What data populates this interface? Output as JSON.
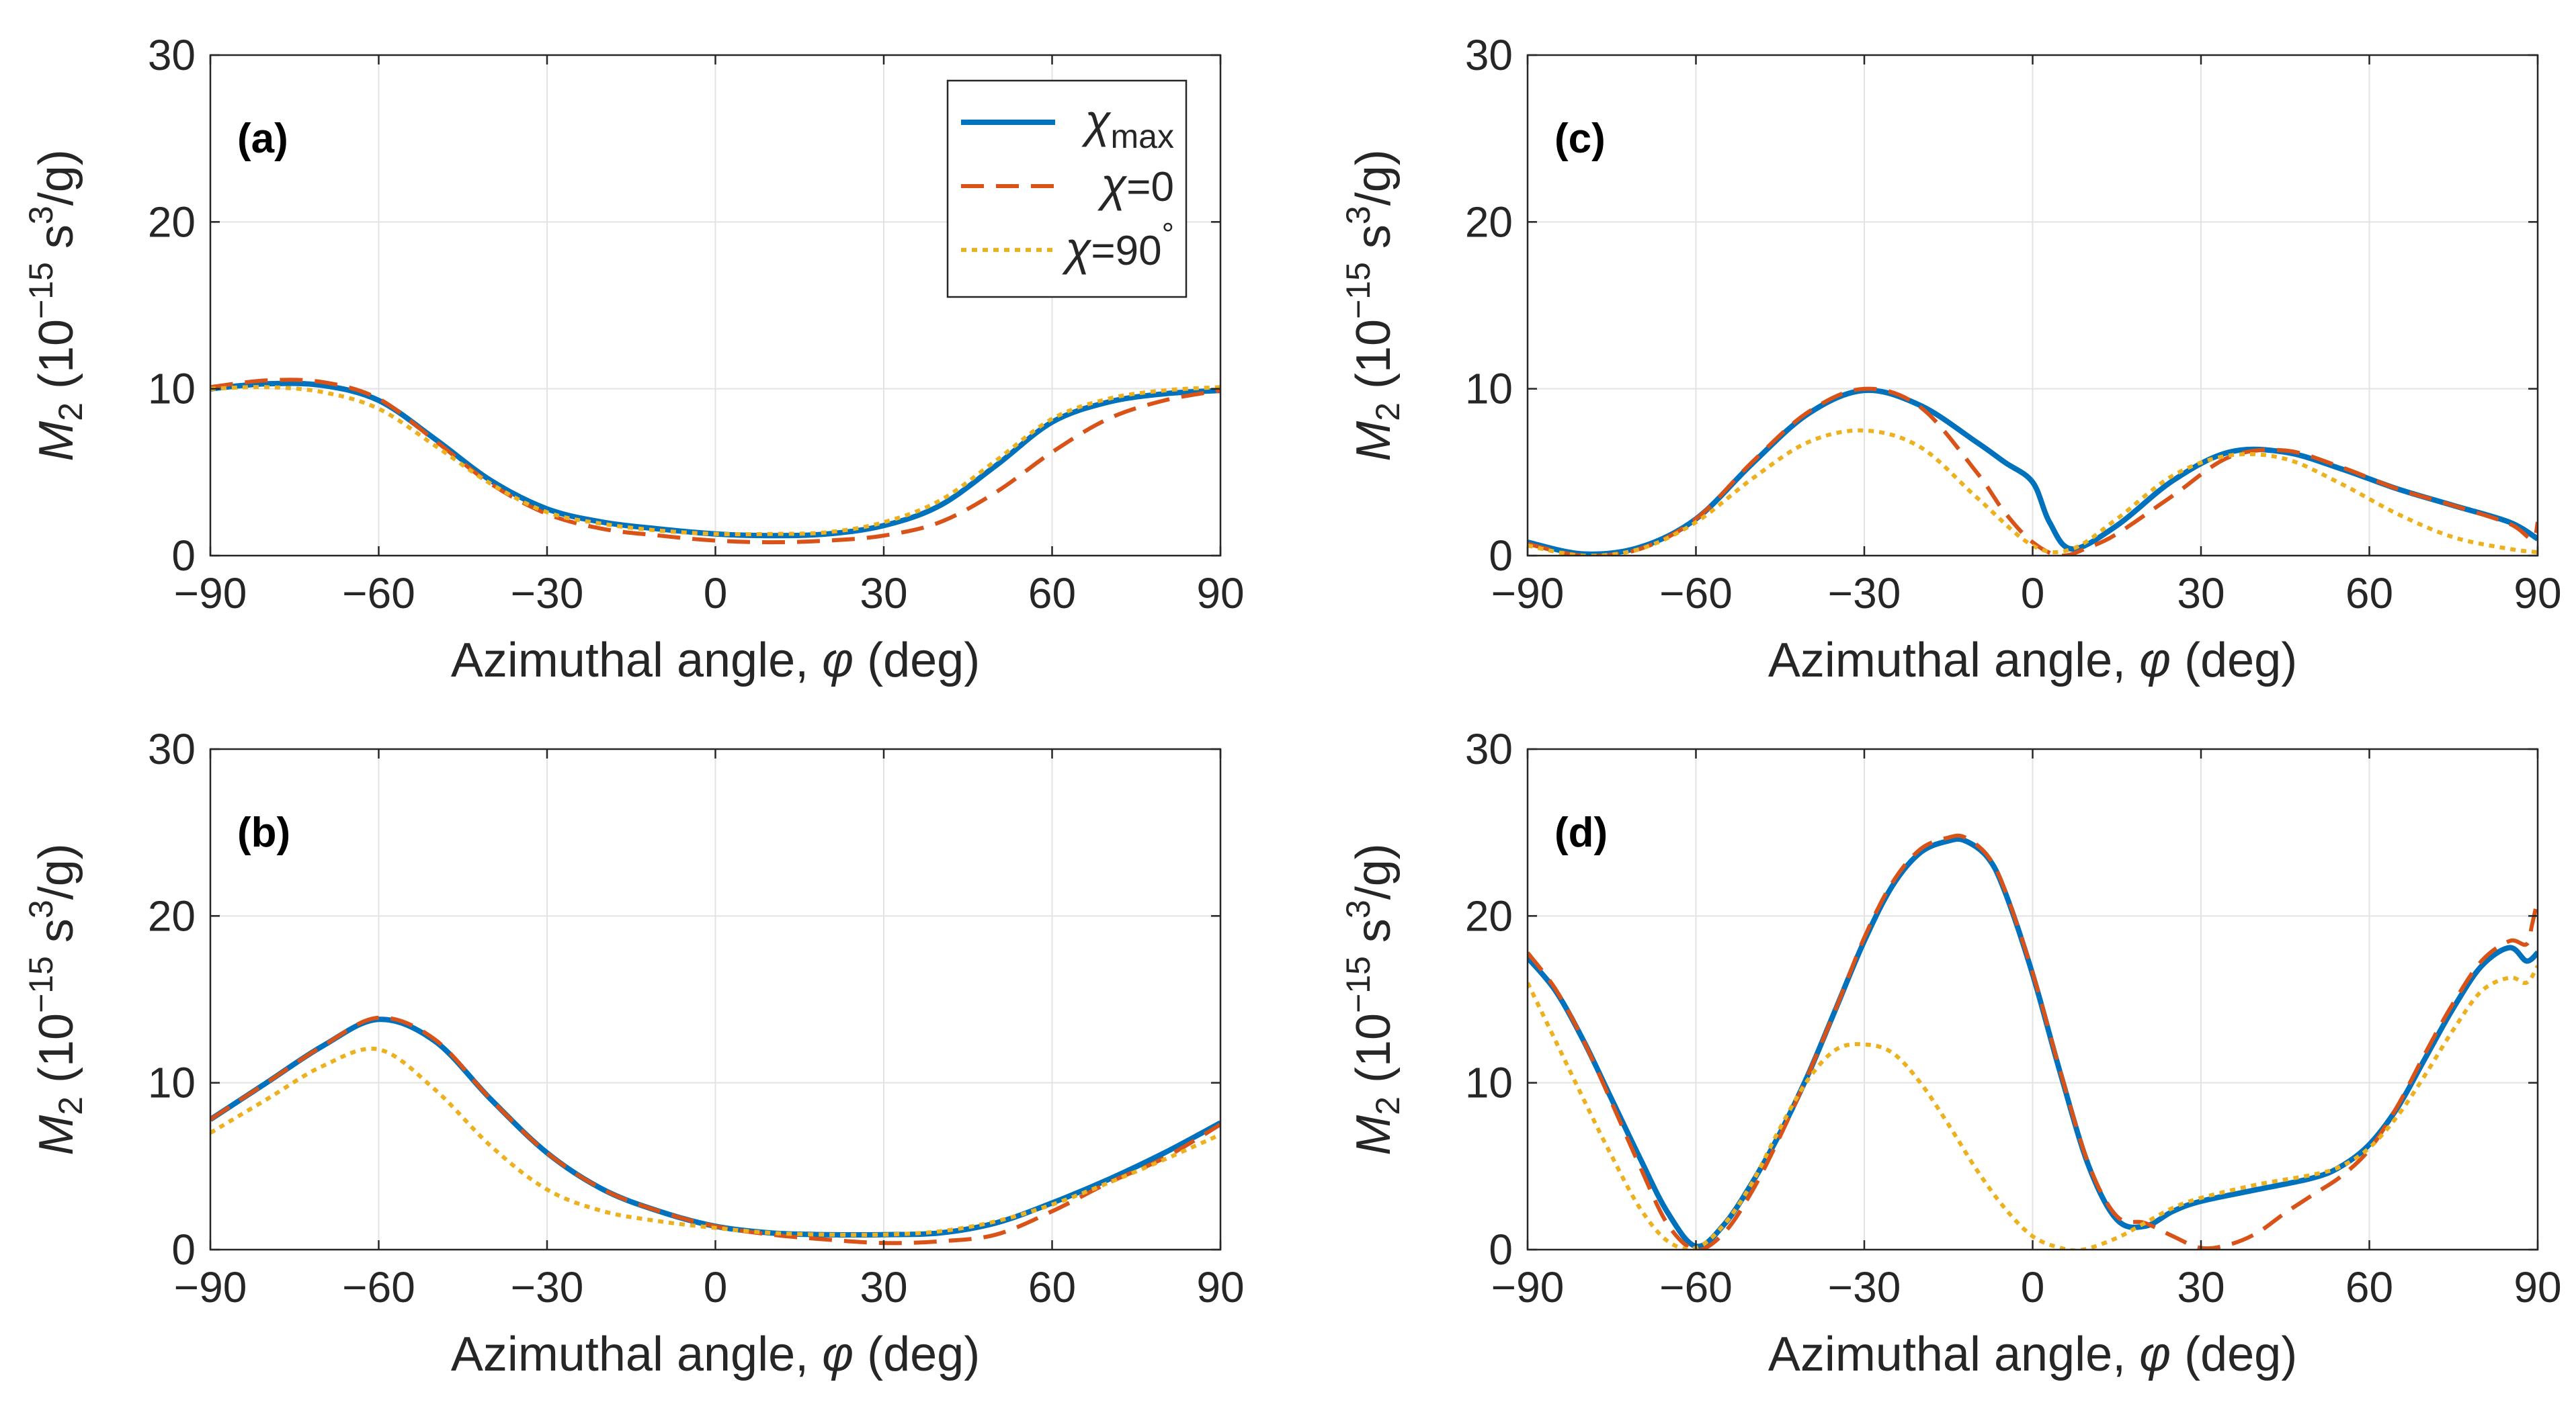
{
  "legend": [
    {
      "name": "χmax",
      "symbol": "χ",
      "sub": "max",
      "sup": "",
      "color": "#0072BD",
      "dash": "solid"
    },
    {
      "name": "χ=0",
      "symbol": "χ",
      "sub": "",
      "suffix": "=0",
      "sup": "",
      "color": "#D95319",
      "dash": "dashed"
    },
    {
      "name": "χ=90°",
      "symbol": "χ",
      "sub": "",
      "suffix": "=90",
      "sup": "°",
      "color": "#EDB120",
      "dash": "dotted"
    }
  ],
  "axis_text": {
    "xlabel_main": "Azimuthal angle, ",
    "xlabel_sym": "φ",
    "xlabel_unit": " (deg)",
    "ylabel_sym": "M",
    "ylabel_sub": "2",
    "ylabel_pre": " (10",
    "ylabel_exp": "−15",
    "ylabel_mid": " s",
    "ylabel_exp2": "3",
    "ylabel_post": "/g)"
  },
  "chart_data": [
    {
      "type": "line",
      "panel": "(a)",
      "xlabel": "Azimuthal angle, φ (deg)",
      "ylabel": "M2 (10^-15 s^3/g)",
      "xlim": [
        -90,
        90
      ],
      "ylim": [
        0,
        30
      ],
      "xticks": [
        -90,
        -60,
        -30,
        0,
        30,
        60,
        90
      ],
      "yticks": [
        0,
        10,
        20,
        30
      ],
      "grid": true,
      "legend_position": "top-right",
      "series": [
        {
          "name": "χmax",
          "x": [
            -90,
            -80,
            -70,
            -60,
            -50,
            -40,
            -30,
            -20,
            -10,
            0,
            10,
            20,
            30,
            40,
            50,
            60,
            70,
            80,
            90
          ],
          "y": [
            10.0,
            10.3,
            10.2,
            9.3,
            7.0,
            4.5,
            2.8,
            2.0,
            1.6,
            1.3,
            1.2,
            1.3,
            1.8,
            3.0,
            5.4,
            8.0,
            9.2,
            9.7,
            9.9
          ]
        },
        {
          "name": "χ=0",
          "x": [
            -90,
            -80,
            -70,
            -60,
            -50,
            -40,
            -30,
            -20,
            -10,
            0,
            10,
            20,
            30,
            40,
            50,
            60,
            70,
            80,
            90
          ],
          "y": [
            10.1,
            10.5,
            10.4,
            9.4,
            6.9,
            4.3,
            2.5,
            1.6,
            1.2,
            0.9,
            0.8,
            0.9,
            1.2,
            2.0,
            3.8,
            6.2,
            8.2,
            9.3,
            9.9
          ]
        },
        {
          "name": "χ=90°",
          "x": [
            -90,
            -80,
            -70,
            -60,
            -50,
            -40,
            -30,
            -20,
            -10,
            0,
            10,
            20,
            30,
            40,
            50,
            60,
            70,
            80,
            90
          ],
          "y": [
            10.0,
            10.1,
            9.8,
            8.8,
            6.6,
            4.3,
            2.6,
            1.9,
            1.5,
            1.3,
            1.3,
            1.4,
            2.0,
            3.3,
            5.7,
            8.2,
            9.4,
            9.9,
            10.1
          ]
        }
      ]
    },
    {
      "type": "line",
      "panel": "(b)",
      "xlabel": "Azimuthal angle, φ (deg)",
      "ylabel": "M2 (10^-15 s^3/g)",
      "xlim": [
        -90,
        90
      ],
      "ylim": [
        0,
        30
      ],
      "xticks": [
        -90,
        -60,
        -30,
        0,
        30,
        60,
        90
      ],
      "yticks": [
        0,
        10,
        20,
        30
      ],
      "grid": true,
      "series": [
        {
          "name": "χmax",
          "x": [
            -90,
            -80,
            -70,
            -60,
            -50,
            -40,
            -30,
            -20,
            -10,
            0,
            10,
            20,
            30,
            40,
            50,
            60,
            70,
            80,
            90
          ],
          "y": [
            7.8,
            10.0,
            12.2,
            13.8,
            12.5,
            9.0,
            5.8,
            3.6,
            2.3,
            1.4,
            1.0,
            0.9,
            0.9,
            1.0,
            1.6,
            2.8,
            4.2,
            5.8,
            7.6
          ]
        },
        {
          "name": "χ=0",
          "x": [
            -90,
            -80,
            -70,
            -60,
            -50,
            -40,
            -30,
            -20,
            -10,
            0,
            10,
            20,
            30,
            40,
            50,
            60,
            70,
            80,
            90
          ],
          "y": [
            7.8,
            10.0,
            12.2,
            13.9,
            12.6,
            9.0,
            5.8,
            3.6,
            2.3,
            1.4,
            0.9,
            0.6,
            0.4,
            0.5,
            0.9,
            2.3,
            4.0,
            5.5,
            7.5
          ]
        },
        {
          "name": "χ=90°",
          "x": [
            -90,
            -80,
            -70,
            -60,
            -50,
            -40,
            -30,
            -20,
            -10,
            0,
            10,
            20,
            30,
            40,
            50,
            60,
            70,
            80,
            90
          ],
          "y": [
            7.0,
            9.0,
            11.0,
            12.0,
            9.6,
            6.2,
            3.6,
            2.3,
            1.7,
            1.3,
            1.0,
            0.9,
            0.9,
            1.1,
            1.7,
            2.7,
            4.0,
            5.4,
            6.9
          ]
        }
      ]
    },
    {
      "type": "line",
      "panel": "(c)",
      "xlabel": "Azimuthal angle, φ (deg)",
      "ylabel": "M2 (10^-15 s^3/g)",
      "xlim": [
        -90,
        90
      ],
      "ylim": [
        0,
        30
      ],
      "xticks": [
        -90,
        -60,
        -30,
        0,
        30,
        60,
        90
      ],
      "yticks": [
        0,
        10,
        20,
        30
      ],
      "grid": true,
      "series": [
        {
          "name": "χmax",
          "x": [
            -90,
            -80,
            -70,
            -60,
            -50,
            -40,
            -30,
            -20,
            -10,
            -5,
            0,
            3,
            7,
            15,
            25,
            35,
            45,
            55,
            65,
            75,
            85,
            90
          ],
          "y": [
            0.8,
            0.1,
            0.5,
            2.2,
            5.5,
            8.5,
            9.9,
            9.0,
            6.8,
            5.6,
            4.4,
            2.0,
            0.4,
            1.8,
            4.5,
            6.2,
            6.2,
            5.2,
            4.0,
            3.0,
            2.0,
            1.0
          ]
        },
        {
          "name": "χ=0",
          "x": [
            -90,
            -80,
            -70,
            -60,
            -50,
            -40,
            -30,
            -20,
            -10,
            -5,
            0,
            5,
            10,
            15,
            25,
            35,
            45,
            55,
            65,
            75,
            85,
            89,
            90
          ],
          "y": [
            0.7,
            0.0,
            0.4,
            2.2,
            5.6,
            8.6,
            10.0,
            8.9,
            5.0,
            2.6,
            0.8,
            0.0,
            0.5,
            1.3,
            3.6,
            5.9,
            6.3,
            5.3,
            4.0,
            3.0,
            1.9,
            1.0,
            2.0
          ]
        },
        {
          "name": "χ=90°",
          "x": [
            -90,
            -80,
            -70,
            -60,
            -50,
            -40,
            -30,
            -20,
            -10,
            0,
            7,
            15,
            25,
            35,
            45,
            55,
            65,
            75,
            85,
            90
          ],
          "y": [
            0.6,
            0.0,
            0.4,
            2.0,
            4.6,
            6.8,
            7.5,
            6.5,
            3.5,
            0.6,
            0.4,
            2.2,
            4.8,
            6.0,
            5.8,
            4.3,
            2.5,
            1.1,
            0.4,
            0.2
          ]
        }
      ]
    },
    {
      "type": "line",
      "panel": "(d)",
      "xlabel": "Azimuthal angle, φ (deg)",
      "ylabel": "M2 (10^-15 s^3/g)",
      "xlim": [
        -90,
        90
      ],
      "ylim": [
        0,
        30
      ],
      "xticks": [
        -90,
        -60,
        -30,
        0,
        30,
        60,
        90
      ],
      "yticks": [
        0,
        10,
        20,
        30
      ],
      "grid": true,
      "series": [
        {
          "name": "χmax",
          "x": [
            -90,
            -85,
            -80,
            -75,
            -70,
            -65,
            -60,
            -55,
            -50,
            -45,
            -40,
            -35,
            -30,
            -25,
            -20,
            -15,
            -12,
            -8,
            -5,
            0,
            5,
            10,
            15,
            20,
            25,
            30,
            40,
            50,
            55,
            60,
            65,
            70,
            75,
            80,
            85,
            88,
            90
          ],
          "y": [
            17.5,
            15.5,
            12.5,
            9.0,
            5.5,
            2.2,
            0.2,
            1.5,
            4.0,
            7.0,
            10.5,
            14.5,
            18.5,
            21.8,
            23.8,
            24.5,
            24.5,
            23.5,
            21.5,
            16.5,
            10.5,
            5.0,
            1.8,
            1.4,
            2.3,
            2.9,
            3.6,
            4.3,
            5.0,
            6.3,
            8.5,
            11.5,
            14.5,
            17.0,
            18.1,
            17.3,
            17.8
          ]
        },
        {
          "name": "χ=0",
          "x": [
            -90,
            -85,
            -80,
            -75,
            -70,
            -65,
            -60,
            -55,
            -50,
            -45,
            -40,
            -35,
            -30,
            -25,
            -20,
            -15,
            -12,
            -8,
            -5,
            0,
            5,
            10,
            15,
            20,
            25,
            30,
            35,
            40,
            45,
            50,
            55,
            60,
            65,
            70,
            75,
            80,
            85,
            88,
            89,
            90
          ],
          "y": [
            17.8,
            15.6,
            12.5,
            8.8,
            5.0,
            1.5,
            0.0,
            1.0,
            3.5,
            6.8,
            10.5,
            14.5,
            18.7,
            22.0,
            24.0,
            24.7,
            24.7,
            23.6,
            21.6,
            16.6,
            10.6,
            5.1,
            2.0,
            1.6,
            0.8,
            0.1,
            0.3,
            1.0,
            2.2,
            3.3,
            4.4,
            6.0,
            8.6,
            11.8,
            14.8,
            17.3,
            18.5,
            18.3,
            19.5,
            21.0
          ]
        },
        {
          "name": "χ=90°",
          "x": [
            -90,
            -85,
            -80,
            -75,
            -70,
            -65,
            -60,
            -55,
            -50,
            -45,
            -40,
            -35,
            -30,
            -25,
            -20,
            -15,
            -10,
            -5,
            0,
            5,
            9,
            15,
            20,
            25,
            30,
            40,
            50,
            55,
            60,
            65,
            70,
            75,
            80,
            85,
            88,
            90
          ],
          "y": [
            16.0,
            12.5,
            9.0,
            5.6,
            2.5,
            0.5,
            0.1,
            1.5,
            4.0,
            7.3,
            10.2,
            12.0,
            12.3,
            11.8,
            10.0,
            7.5,
            4.8,
            2.5,
            0.8,
            0.1,
            0.0,
            0.7,
            1.6,
            2.5,
            3.1,
            3.9,
            4.5,
            5.0,
            6.1,
            8.0,
            10.5,
            13.2,
            15.5,
            16.3,
            16.0,
            17.0
          ]
        }
      ]
    }
  ]
}
